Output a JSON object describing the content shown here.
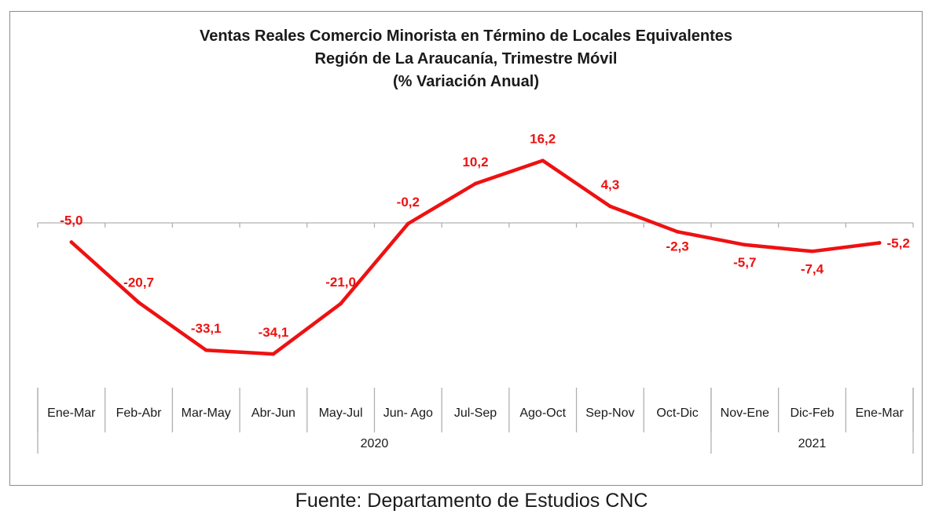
{
  "chart_data": {
    "type": "line",
    "title": "Ventas Reales Comercio Minorista  en Término de Locales Equivalentes",
    "subtitle": "Región de La Araucanía, Trimestre Móvil",
    "subtitle2": "(% Variación Anual)",
    "categories": [
      "Ene-Mar",
      "Feb-Abr",
      "Mar-May",
      "Abr-Jun",
      "May-Jul",
      "Jun- Ago",
      "Jul-Sep",
      "Ago-Oct",
      "Sep-Nov",
      "Oct-Dic",
      "Nov-Ene",
      "Dic-Feb",
      "Ene-Mar"
    ],
    "values": [
      -5.0,
      -20.7,
      -33.1,
      -34.1,
      -21.0,
      -0.2,
      10.2,
      16.2,
      4.3,
      -2.3,
      -5.7,
      -7.4,
      -5.2
    ],
    "data_labels": [
      "-5,0",
      "-20,7",
      "-33,1",
      "-34,1",
      "-21,0",
      "-0,2",
      "10,2",
      "16,2",
      "4,3",
      "-2,3",
      "-5,7",
      "-7,4",
      "-5,2"
    ],
    "year_groups": [
      {
        "label": "2020",
        "start": 0,
        "end": 9
      },
      {
        "label": "2021",
        "start": 10,
        "end": 12
      }
    ],
    "line_color": "#ee1111",
    "label_color": "#ee1111",
    "ylim": [
      -40,
      20
    ],
    "grid": false,
    "legend": "none"
  },
  "footer": {
    "source": "Fuente: Departamento de Estudios CNC"
  }
}
